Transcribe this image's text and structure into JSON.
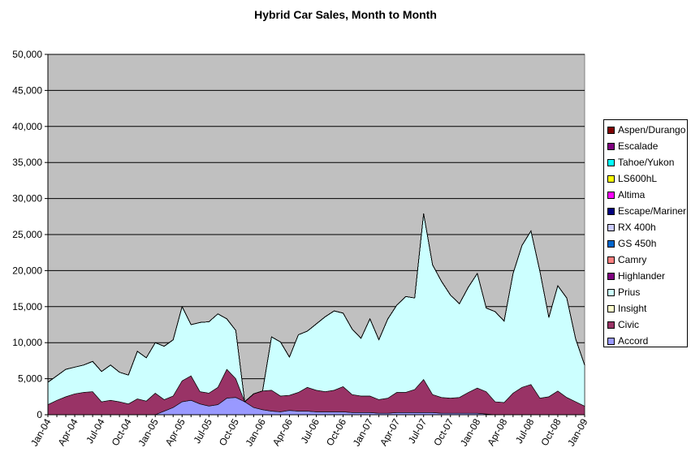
{
  "chart_data": {
    "type": "area",
    "stacked": true,
    "title": "Hybrid Car Sales, Month to Month",
    "xlabel": "",
    "ylabel": "",
    "ylim": [
      0,
      50000
    ],
    "y_ticks": [
      "0",
      "5,000",
      "10,000",
      "15,000",
      "20,000",
      "25,000",
      "30,000",
      "35,000",
      "40,000",
      "45,000",
      "50,000"
    ],
    "y_tick_values": [
      0,
      5000,
      10000,
      15000,
      20000,
      25000,
      30000,
      35000,
      40000,
      45000,
      50000
    ],
    "grid": true,
    "legend_position": "right",
    "x": [
      "Jan-04",
      "Feb-04",
      "Mar-04",
      "Apr-04",
      "May-04",
      "Jun-04",
      "Jul-04",
      "Aug-04",
      "Sep-04",
      "Oct-04",
      "Nov-04",
      "Dec-04",
      "Jan-05",
      "Feb-05",
      "Mar-05",
      "Apr-05",
      "May-05",
      "Jun-05",
      "Jul-05",
      "Aug-05",
      "Sep-05",
      "Oct-05",
      "Nov-05",
      "Dec-05",
      "Jan-06",
      "Feb-06",
      "Mar-06",
      "Apr-06",
      "May-06",
      "Jun-06",
      "Jul-06",
      "Aug-06",
      "Sep-06",
      "Oct-06",
      "Nov-06",
      "Dec-06",
      "Jan-07",
      "Feb-07",
      "Mar-07",
      "Apr-07",
      "May-07",
      "Jun-07",
      "Jul-07",
      "Aug-07",
      "Sep-07",
      "Oct-07",
      "Nov-07",
      "Dec-07",
      "Jan-08",
      "Feb-08",
      "Mar-08",
      "Apr-08",
      "May-08",
      "Jun-08",
      "Jul-08",
      "Aug-08",
      "Sep-08",
      "Oct-08",
      "Nov-08",
      "Dec-08",
      "Jan-09"
    ],
    "x_tick_labels": [
      "Jan-04",
      "Apr-04",
      "Jul-04",
      "Oct-04",
      "Jan-05",
      "Apr-05",
      "Jul-05",
      "Oct-05",
      "Jan-06",
      "Apr-06",
      "Jul-06",
      "Oct-06",
      "Jan-07",
      "Apr-07",
      "Jul-07",
      "Oct-07",
      "Jan-08",
      "Apr-08",
      "Jul-08",
      "Oct-08",
      "Jan-09"
    ],
    "series": [
      {
        "name": "Accord",
        "color": "#9999FF",
        "values": [
          0,
          0,
          0,
          0,
          0,
          0,
          0,
          0,
          0,
          0,
          0,
          0,
          0,
          500,
          1000,
          1800,
          2000,
          1500,
          1200,
          1400,
          2300,
          2400,
          1800,
          1000,
          700,
          500,
          400,
          600,
          500,
          500,
          400,
          400,
          400,
          400,
          300,
          300,
          300,
          200,
          200,
          300,
          300,
          300,
          300,
          300,
          200,
          200,
          200,
          200,
          200,
          100,
          0,
          0,
          0,
          0,
          0,
          0,
          0,
          0,
          0,
          0,
          0
        ]
      },
      {
        "name": "Civic",
        "color": "#993366",
        "values": [
          1400,
          2000,
          2500,
          2900,
          3100,
          3200,
          1800,
          2000,
          1800,
          1500,
          2200,
          1900,
          3000,
          1600,
          1600,
          2900,
          3400,
          1700,
          1800,
          2400,
          4000,
          2600,
          0,
          1900,
          2600,
          2900,
          2200,
          2100,
          2600,
          3300,
          3000,
          2800,
          3000,
          3500,
          2500,
          2300,
          2300,
          1900,
          2100,
          2800,
          2800,
          3200,
          4600,
          2500,
          2200,
          2100,
          2200,
          2900,
          3500,
          3100,
          1800,
          1700,
          3000,
          3800,
          4200,
          2300,
          2500,
          3300,
          2400,
          1800,
          1200
        ]
      },
      {
        "name": "Insight",
        "color": "#FFFFCC",
        "values": [
          0,
          0,
          0,
          0,
          0,
          0,
          0,
          0,
          0,
          0,
          0,
          0,
          0,
          0,
          0,
          0,
          0,
          0,
          0,
          0,
          0,
          0,
          0,
          0,
          0,
          0,
          0,
          0,
          0,
          0,
          0,
          0,
          0,
          0,
          0,
          0,
          0,
          0,
          0,
          0,
          0,
          0,
          0,
          0,
          0,
          0,
          0,
          0,
          0,
          0,
          0,
          0,
          0,
          0,
          0,
          0,
          0,
          0,
          0,
          0,
          0
        ]
      },
      {
        "name": "Prius",
        "color": "#CCFFFF",
        "values": [
          3100,
          3400,
          3800,
          3700,
          3800,
          4200,
          4200,
          4900,
          4100,
          4000,
          6600,
          6000,
          7000,
          7400,
          7800,
          10300,
          7100,
          9600,
          9900,
          10200,
          7000,
          6700,
          0,
          0,
          0,
          7400,
          7500,
          5300,
          8000,
          7800,
          9200,
          10400,
          11000,
          10200,
          9100,
          8000,
          10700,
          8300,
          11000,
          12100,
          13300,
          12700,
          23000,
          18000,
          16100,
          14300,
          13000,
          14600,
          15900,
          11600,
          12500,
          11300,
          16600,
          19700,
          21300,
          17600,
          11000,
          14600,
          13800,
          8700,
          5700
        ]
      },
      {
        "name": "Highlander",
        "color": "#800080",
        "values": [
          0,
          0,
          0,
          0,
          0,
          0,
          0,
          0,
          0,
          0,
          0,
          0,
          0,
          0,
          0,
          0,
          0,
          0,
          0,
          0,
          0,
          0,
          0,
          0,
          0,
          0,
          0,
          0,
          0,
          0,
          0,
          0,
          0,
          0,
          0,
          0,
          0,
          0,
          0,
          0,
          0,
          0,
          0,
          0,
          0,
          0,
          0,
          0,
          0,
          0,
          0,
          0,
          0,
          0,
          0,
          0,
          0,
          0,
          0,
          0,
          0
        ]
      },
      {
        "name": "Camry",
        "color": "#FF8080",
        "values": [
          0,
          0,
          0,
          0,
          0,
          0,
          0,
          0,
          0,
          0,
          0,
          0,
          0,
          0,
          0,
          0,
          0,
          0,
          0,
          0,
          0,
          0,
          0,
          0,
          0,
          0,
          0,
          0,
          0,
          0,
          0,
          0,
          0,
          0,
          0,
          0,
          0,
          0,
          0,
          0,
          0,
          0,
          0,
          0,
          0,
          0,
          0,
          0,
          0,
          0,
          0,
          0,
          0,
          0,
          0,
          0,
          0,
          0,
          0,
          0,
          0
        ]
      },
      {
        "name": "GS 450h",
        "color": "#0066CC",
        "values": [
          0,
          0,
          0,
          0,
          0,
          0,
          0,
          0,
          0,
          0,
          0,
          0,
          0,
          0,
          0,
          0,
          0,
          0,
          0,
          0,
          0,
          0,
          0,
          0,
          0,
          0,
          0,
          0,
          0,
          0,
          0,
          0,
          0,
          0,
          0,
          0,
          0,
          0,
          0,
          0,
          0,
          0,
          0,
          0,
          0,
          0,
          0,
          0,
          0,
          0,
          0,
          0,
          0,
          0,
          0,
          0,
          0,
          0,
          0,
          0,
          0
        ]
      },
      {
        "name": "RX 400h",
        "color": "#CCCCFF",
        "values": [
          0,
          0,
          0,
          0,
          0,
          0,
          0,
          0,
          0,
          0,
          0,
          0,
          0,
          0,
          0,
          0,
          0,
          0,
          0,
          0,
          0,
          0,
          0,
          0,
          0,
          0,
          0,
          0,
          0,
          0,
          0,
          0,
          0,
          0,
          0,
          0,
          0,
          0,
          0,
          0,
          0,
          0,
          0,
          0,
          0,
          0,
          0,
          0,
          0,
          0,
          0,
          0,
          0,
          0,
          0,
          0,
          0,
          0,
          0,
          0,
          0
        ]
      },
      {
        "name": "Escape/Mariner",
        "color": "#000080",
        "values": [
          0,
          0,
          0,
          0,
          0,
          0,
          0,
          0,
          0,
          0,
          0,
          0,
          0,
          0,
          0,
          0,
          0,
          0,
          0,
          0,
          0,
          0,
          0,
          0,
          0,
          0,
          0,
          0,
          0,
          0,
          0,
          0,
          0,
          0,
          0,
          0,
          0,
          0,
          0,
          0,
          0,
          0,
          0,
          0,
          0,
          0,
          0,
          0,
          0,
          0,
          0,
          0,
          0,
          0,
          0,
          0,
          0,
          0,
          0,
          0,
          0
        ]
      },
      {
        "name": "Altima",
        "color": "#FF00FF",
        "values": [
          0,
          0,
          0,
          0,
          0,
          0,
          0,
          0,
          0,
          0,
          0,
          0,
          0,
          0,
          0,
          0,
          0,
          0,
          0,
          0,
          0,
          0,
          0,
          0,
          0,
          0,
          0,
          0,
          0,
          0,
          0,
          0,
          0,
          0,
          0,
          0,
          0,
          0,
          0,
          0,
          0,
          0,
          0,
          0,
          0,
          0,
          0,
          0,
          0,
          0,
          0,
          0,
          0,
          0,
          0,
          0,
          0,
          0,
          0,
          0,
          0
        ]
      },
      {
        "name": "LS600hL",
        "color": "#FFFF00",
        "values": [
          0,
          0,
          0,
          0,
          0,
          0,
          0,
          0,
          0,
          0,
          0,
          0,
          0,
          0,
          0,
          0,
          0,
          0,
          0,
          0,
          0,
          0,
          0,
          0,
          0,
          0,
          0,
          0,
          0,
          0,
          0,
          0,
          0,
          0,
          0,
          0,
          0,
          0,
          0,
          0,
          0,
          0,
          0,
          0,
          0,
          0,
          0,
          0,
          0,
          0,
          0,
          0,
          0,
          0,
          0,
          0,
          0,
          0,
          0,
          0,
          0
        ]
      },
      {
        "name": "Tahoe/Yukon",
        "color": "#00FFFF",
        "values": [
          0,
          0,
          0,
          0,
          0,
          0,
          0,
          0,
          0,
          0,
          0,
          0,
          0,
          0,
          0,
          0,
          0,
          0,
          0,
          0,
          0,
          0,
          0,
          0,
          0,
          0,
          0,
          0,
          0,
          0,
          0,
          0,
          0,
          0,
          0,
          0,
          0,
          0,
          0,
          0,
          0,
          0,
          0,
          0,
          0,
          0,
          0,
          0,
          0,
          0,
          0,
          0,
          0,
          0,
          0,
          0,
          0,
          0,
          0,
          0,
          0
        ]
      },
      {
        "name": "Escalade",
        "color": "#800080",
        "values": [
          0,
          0,
          0,
          0,
          0,
          0,
          0,
          0,
          0,
          0,
          0,
          0,
          0,
          0,
          0,
          0,
          0,
          0,
          0,
          0,
          0,
          0,
          0,
          0,
          0,
          0,
          0,
          0,
          0,
          0,
          0,
          0,
          0,
          0,
          0,
          0,
          0,
          0,
          0,
          0,
          0,
          0,
          0,
          0,
          0,
          0,
          0,
          0,
          0,
          0,
          0,
          0,
          0,
          0,
          0,
          0,
          0,
          0,
          0,
          0,
          0
        ]
      },
      {
        "name": "Aspen/Durango",
        "color": "#800000",
        "values": [
          0,
          0,
          0,
          0,
          0,
          0,
          0,
          0,
          0,
          0,
          0,
          0,
          0,
          0,
          0,
          0,
          0,
          0,
          0,
          0,
          0,
          0,
          0,
          0,
          0,
          0,
          0,
          0,
          0,
          0,
          0,
          0,
          0,
          0,
          0,
          0,
          0,
          0,
          0,
          0,
          0,
          0,
          0,
          0,
          0,
          0,
          0,
          0,
          0,
          0,
          0,
          0,
          0,
          0,
          0,
          0,
          0,
          0,
          0,
          0,
          0
        ]
      }
    ]
  }
}
